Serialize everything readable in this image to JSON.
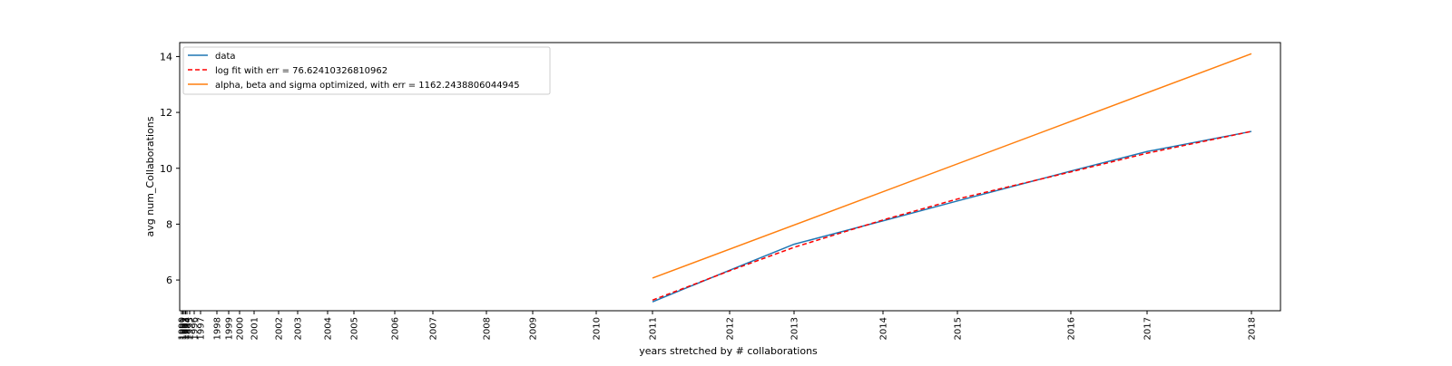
{
  "chart_data": {
    "type": "line",
    "title": "",
    "xlabel": "years stretched by # collaborations",
    "ylabel": "avg num_Collaborations",
    "x_axis": "years stretched by number of collaborations (non-uniform spacing)",
    "xticks": [
      {
        "label": "1990"
      },
      {
        "label": "1991"
      },
      {
        "label": "1992"
      },
      {
        "label": "1993"
      },
      {
        "label": "1994"
      },
      {
        "label": "1995"
      },
      {
        "label": "1996"
      },
      {
        "label": "1997"
      },
      {
        "label": "1998"
      },
      {
        "label": "1999"
      },
      {
        "label": "2000"
      },
      {
        "label": "2001"
      },
      {
        "label": "2002"
      },
      {
        "label": "2003"
      },
      {
        "label": "2004"
      },
      {
        "label": "2005"
      },
      {
        "label": "2006"
      },
      {
        "label": "2007"
      },
      {
        "label": "2008"
      },
      {
        "label": "2009"
      },
      {
        "label": "2010"
      },
      {
        "label": "2011"
      },
      {
        "label": "2012"
      },
      {
        "label": "2013"
      },
      {
        "label": "2014"
      },
      {
        "label": "2015"
      },
      {
        "label": "2016"
      },
      {
        "label": "2017"
      },
      {
        "label": "2018"
      }
    ],
    "yticks": [
      6,
      8,
      10,
      12,
      14
    ],
    "ylim": [
      4.9,
      14.5
    ],
    "legend_position": "top-left",
    "series": [
      {
        "name": "data",
        "color": "#1f77b4",
        "style": "solid",
        "points": [
          {
            "x": "2011",
            "y": 5.22
          },
          {
            "x": "2012",
            "y": 6.35
          },
          {
            "x": "2013",
            "y": 7.28
          },
          {
            "x": "2014",
            "y": 8.12
          },
          {
            "x": "2015",
            "y": 8.83
          },
          {
            "x": "2016",
            "y": 9.9
          },
          {
            "x": "2017",
            "y": 10.6
          },
          {
            "x": "2018",
            "y": 11.32
          }
        ]
      },
      {
        "name": "log fit with err = 76.62410326810962",
        "color": "#ff0000",
        "style": "dashed",
        "points": [
          {
            "x": "2011",
            "y": 5.28
          },
          {
            "x": "2012",
            "y": 6.33
          },
          {
            "x": "2013",
            "y": 7.17
          },
          {
            "x": "2014",
            "y": 8.15
          },
          {
            "x": "2015",
            "y": 8.9
          },
          {
            "x": "2016",
            "y": 9.87
          },
          {
            "x": "2017",
            "y": 10.54
          },
          {
            "x": "2018",
            "y": 11.32
          }
        ]
      },
      {
        "name": "alpha, beta and sigma optimized, with err = 1162.2438806044945",
        "color": "#ff7f0e",
        "style": "solid",
        "points": [
          {
            "x": "2011",
            "y": 6.07
          },
          {
            "x": "2018",
            "y": 14.1
          }
        ]
      }
    ]
  }
}
